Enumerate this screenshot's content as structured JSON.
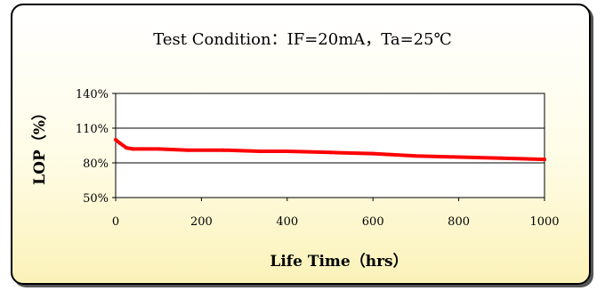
{
  "chart_data": {
    "type": "line",
    "title": "Test Condition：IF=20mA，Ta=25℃",
    "xlabel": "Life Time（hrs）",
    "ylabel": "LOP（%）",
    "xlim": [
      0,
      1000
    ],
    "ylim": [
      50,
      140
    ],
    "xticks": [
      0,
      200,
      400,
      600,
      800,
      1000
    ],
    "yticks": [
      50,
      80,
      110,
      140
    ],
    "ytick_labels": [
      "50%",
      "80%",
      "110%",
      "140%"
    ],
    "grid": "horizontal",
    "series": [
      {
        "color": "#ff0000",
        "x": [
          0,
          10,
          25,
          40,
          60,
          100,
          168,
          250,
          336,
          400,
          500,
          600,
          700,
          800,
          900,
          1000
        ],
        "y": [
          100,
          97,
          93,
          92,
          92,
          92,
          91,
          91,
          90,
          90,
          89,
          88,
          86,
          85,
          84,
          83
        ]
      }
    ]
  }
}
